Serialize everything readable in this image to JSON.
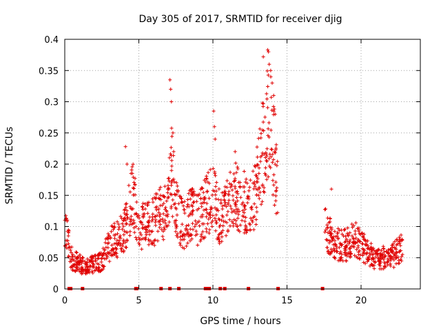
{
  "chart_data": {
    "type": "scatter",
    "title": "Day 305 of 2017, SRMTID for receiver djig",
    "xlabel": "GPS time / hours",
    "ylabel": "SRMTID / TECUs",
    "xlim": [
      0,
      24
    ],
    "ylim": [
      0,
      0.4
    ],
    "xticks": [
      0,
      5,
      10,
      15,
      20
    ],
    "xtick_labels": [
      "0",
      "5",
      "10",
      "15",
      "20"
    ],
    "yticks": [
      0,
      0.05,
      0.1,
      0.15,
      0.2,
      0.25,
      0.3,
      0.35,
      0.4
    ],
    "ytick_labels": [
      "0",
      "0.05",
      "0.1",
      "0.15",
      "0.2",
      "0.25",
      "0.3",
      "0.35",
      "0.4"
    ],
    "grid": true,
    "marker": "plus",
    "color": "#e00000",
    "zero_markers_x": [
      0.3,
      0.4,
      1.2,
      4.8,
      4.85,
      6.5,
      7.1,
      7.7,
      9.5,
      9.6,
      9.75,
      10.5,
      10.8,
      12.4,
      14.4,
      17.4
    ],
    "trend": [
      [
        0.0,
        0.11
      ],
      [
        0.2,
        0.09
      ],
      [
        0.35,
        0.055
      ],
      [
        0.6,
        0.045
      ],
      [
        1.0,
        0.04
      ],
      [
        1.5,
        0.035
      ],
      [
        2.0,
        0.04
      ],
      [
        2.5,
        0.045
      ],
      [
        3.0,
        0.07
      ],
      [
        3.5,
        0.08
      ],
      [
        4.0,
        0.09
      ],
      [
        4.4,
        0.13
      ],
      [
        4.6,
        0.15
      ],
      [
        5.0,
        0.1
      ],
      [
        5.5,
        0.1
      ],
      [
        6.0,
        0.11
      ],
      [
        6.5,
        0.12
      ],
      [
        7.0,
        0.13
      ],
      [
        7.2,
        0.2
      ],
      [
        7.5,
        0.13
      ],
      [
        8.0,
        0.1
      ],
      [
        8.5,
        0.12
      ],
      [
        9.0,
        0.11
      ],
      [
        9.5,
        0.13
      ],
      [
        10.0,
        0.15
      ],
      [
        10.5,
        0.11
      ],
      [
        11.0,
        0.13
      ],
      [
        11.5,
        0.15
      ],
      [
        12.0,
        0.14
      ],
      [
        12.5,
        0.13
      ],
      [
        13.0,
        0.17
      ],
      [
        13.5,
        0.24
      ],
      [
        13.9,
        0.28
      ],
      [
        14.2,
        0.2
      ],
      [
        14.4,
        0.16
      ],
      [
        17.5,
        0.1
      ],
      [
        18.0,
        0.08
      ],
      [
        18.5,
        0.07
      ],
      [
        19.0,
        0.07
      ],
      [
        19.5,
        0.08
      ],
      [
        20.0,
        0.07
      ],
      [
        20.5,
        0.06
      ],
      [
        21.0,
        0.045
      ],
      [
        21.5,
        0.05
      ],
      [
        22.0,
        0.05
      ],
      [
        22.5,
        0.06
      ],
      [
        22.8,
        0.065
      ]
    ],
    "spikes": [
      [
        4.1,
        0.228
      ],
      [
        4.2,
        0.2
      ],
      [
        7.1,
        0.335
      ],
      [
        7.15,
        0.32
      ],
      [
        7.2,
        0.3
      ],
      [
        7.3,
        0.25
      ],
      [
        7.35,
        0.22
      ],
      [
        10.05,
        0.285
      ],
      [
        10.1,
        0.26
      ],
      [
        10.15,
        0.24
      ],
      [
        11.5,
        0.22
      ],
      [
        13.4,
        0.372
      ],
      [
        13.7,
        0.383
      ],
      [
        13.75,
        0.38
      ],
      [
        13.8,
        0.36
      ],
      [
        13.9,
        0.35
      ],
      [
        14.0,
        0.33
      ],
      [
        14.1,
        0.31
      ],
      [
        14.2,
        0.28
      ],
      [
        18.0,
        0.16
      ]
    ]
  }
}
